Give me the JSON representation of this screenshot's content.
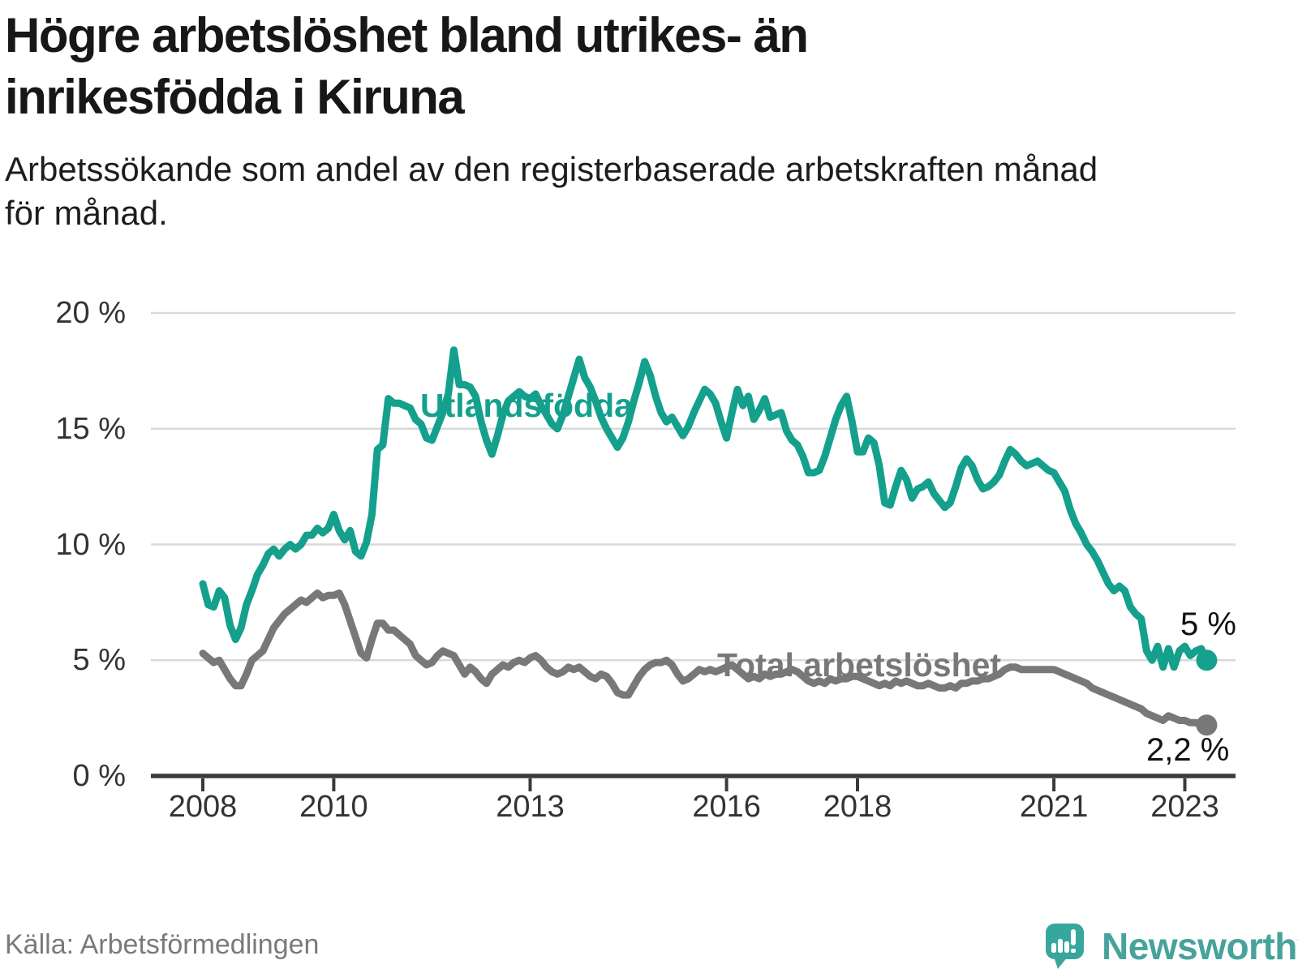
{
  "header": {
    "title_line1": "Högre arbetslöshet bland utrikes- än",
    "title_line2": "inrikesfödda i Kiruna",
    "subtitle_line1": "Arbetssökande som andel av den registerbaserade arbetskraften månad",
    "subtitle_line2": "för månad."
  },
  "chart_data": {
    "type": "line",
    "x_start_year": 2008,
    "x_step_months": 1,
    "x_tick_years": [
      2008,
      2010,
      2013,
      2016,
      2018,
      2021,
      2023
    ],
    "x_tick_labels": [
      "2008",
      "2010",
      "2013",
      "2016",
      "2018",
      "2021",
      "2023"
    ],
    "ylim": [
      0,
      20
    ],
    "y_tick_values": [
      0,
      5,
      10,
      15,
      20
    ],
    "y_tick_labels": [
      "0 %",
      "5 %",
      "10 %",
      "15 %",
      "20 %"
    ],
    "grid": "horizontal",
    "colors": {
      "axis": "#3a3a3a",
      "gridline": "#d9d9d9"
    },
    "series": [
      {
        "name": "Utlandsfödda",
        "color": "#14a08c",
        "end_label": "5 %",
        "values": [
          8.3,
          7.4,
          7.3,
          8.0,
          7.7,
          6.5,
          5.9,
          6.4,
          7.4,
          8.0,
          8.7,
          9.1,
          9.6,
          9.8,
          9.5,
          9.8,
          10.0,
          9.8,
          10.0,
          10.4,
          10.4,
          10.7,
          10.5,
          10.7,
          11.3,
          10.6,
          10.2,
          10.6,
          9.7,
          9.5,
          10.1,
          11.3,
          14.1,
          14.3,
          16.3,
          16.1,
          16.1,
          16.0,
          15.9,
          15.4,
          15.2,
          14.6,
          14.5,
          15.1,
          15.7,
          16.5,
          18.4,
          16.9,
          16.9,
          16.8,
          16.4,
          15.3,
          14.5,
          13.9,
          14.7,
          15.6,
          16.2,
          16.4,
          16.6,
          16.4,
          16.3,
          16.5,
          16.0,
          15.6,
          15.2,
          15.0,
          15.6,
          16.4,
          17.2,
          18.0,
          17.2,
          16.8,
          16.2,
          15.5,
          15.0,
          14.6,
          14.2,
          14.6,
          15.3,
          16.2,
          17.0,
          17.9,
          17.3,
          16.4,
          15.7,
          15.3,
          15.5,
          15.1,
          14.7,
          15.1,
          15.7,
          16.2,
          16.7,
          16.5,
          16.1,
          15.3,
          14.6,
          15.7,
          16.7,
          16.0,
          16.4,
          15.4,
          15.8,
          16.3,
          15.5,
          15.6,
          15.7,
          14.9,
          14.5,
          14.3,
          13.8,
          13.1,
          13.1,
          13.2,
          13.8,
          14.6,
          15.4,
          16.0,
          16.4,
          15.3,
          14.0,
          14.0,
          14.6,
          14.4,
          13.4,
          11.8,
          11.7,
          12.5,
          13.2,
          12.8,
          12.0,
          12.4,
          12.5,
          12.7,
          12.2,
          11.9,
          11.6,
          11.8,
          12.5,
          13.3,
          13.7,
          13.4,
          12.8,
          12.4,
          12.5,
          12.7,
          13.0,
          13.6,
          14.1,
          13.9,
          13.6,
          13.4,
          13.5,
          13.6,
          13.4,
          13.2,
          13.1,
          12.7,
          12.3,
          11.5,
          10.9,
          10.5,
          10.0,
          9.7,
          9.3,
          8.8,
          8.3,
          8.0,
          8.2,
          8.0,
          7.3,
          7.0,
          6.8,
          5.4,
          5.0,
          5.6,
          4.7,
          5.5,
          4.7,
          5.4,
          5.6,
          5.2,
          5.4,
          5.5,
          5.0
        ]
      },
      {
        "name": "Total arbetslöshet",
        "color": "#787878",
        "end_label": "2,2 %",
        "values": [
          5.3,
          5.1,
          4.9,
          5.0,
          4.6,
          4.2,
          3.9,
          3.9,
          4.4,
          5.0,
          5.2,
          5.4,
          5.9,
          6.4,
          6.7,
          7.0,
          7.2,
          7.4,
          7.6,
          7.5,
          7.7,
          7.9,
          7.7,
          7.8,
          7.8,
          7.9,
          7.4,
          6.7,
          6.0,
          5.3,
          5.1,
          5.9,
          6.6,
          6.6,
          6.3,
          6.3,
          6.1,
          5.9,
          5.7,
          5.2,
          5.0,
          4.8,
          4.9,
          5.2,
          5.4,
          5.3,
          5.2,
          4.8,
          4.4,
          4.7,
          4.5,
          4.2,
          4.0,
          4.4,
          4.6,
          4.8,
          4.7,
          4.9,
          5.0,
          4.9,
          5.1,
          5.2,
          5.0,
          4.7,
          4.5,
          4.4,
          4.5,
          4.7,
          4.6,
          4.7,
          4.5,
          4.3,
          4.2,
          4.4,
          4.3,
          4.0,
          3.6,
          3.5,
          3.5,
          3.9,
          4.3,
          4.6,
          4.8,
          4.9,
          4.9,
          5.0,
          4.8,
          4.4,
          4.1,
          4.2,
          4.4,
          4.6,
          4.5,
          4.6,
          4.5,
          4.6,
          4.7,
          4.8,
          4.6,
          4.4,
          4.2,
          4.3,
          4.2,
          4.4,
          4.3,
          4.4,
          4.4,
          4.5,
          4.6,
          4.5,
          4.3,
          4.1,
          4.0,
          4.1,
          4.0,
          4.2,
          4.1,
          4.2,
          4.2,
          4.3,
          4.3,
          4.2,
          4.1,
          4.0,
          3.9,
          4.0,
          3.9,
          4.1,
          4.0,
          4.1,
          4.0,
          3.9,
          3.9,
          4.0,
          3.9,
          3.8,
          3.8,
          3.9,
          3.8,
          4.0,
          4.0,
          4.1,
          4.1,
          4.2,
          4.2,
          4.3,
          4.4,
          4.6,
          4.7,
          4.7,
          4.6,
          4.6,
          4.6,
          4.6,
          4.6,
          4.6,
          4.6,
          4.5,
          4.4,
          4.3,
          4.2,
          4.1,
          4.0,
          3.8,
          3.7,
          3.6,
          3.5,
          3.4,
          3.3,
          3.2,
          3.1,
          3.0,
          2.9,
          2.7,
          2.6,
          2.5,
          2.4,
          2.6,
          2.5,
          2.4,
          2.4,
          2.3,
          2.3,
          2.2,
          2.2
        ]
      }
    ]
  },
  "footer": {
    "source": "Källa: Arbetsförmedlingen",
    "logo_text": "Newsworthy"
  }
}
